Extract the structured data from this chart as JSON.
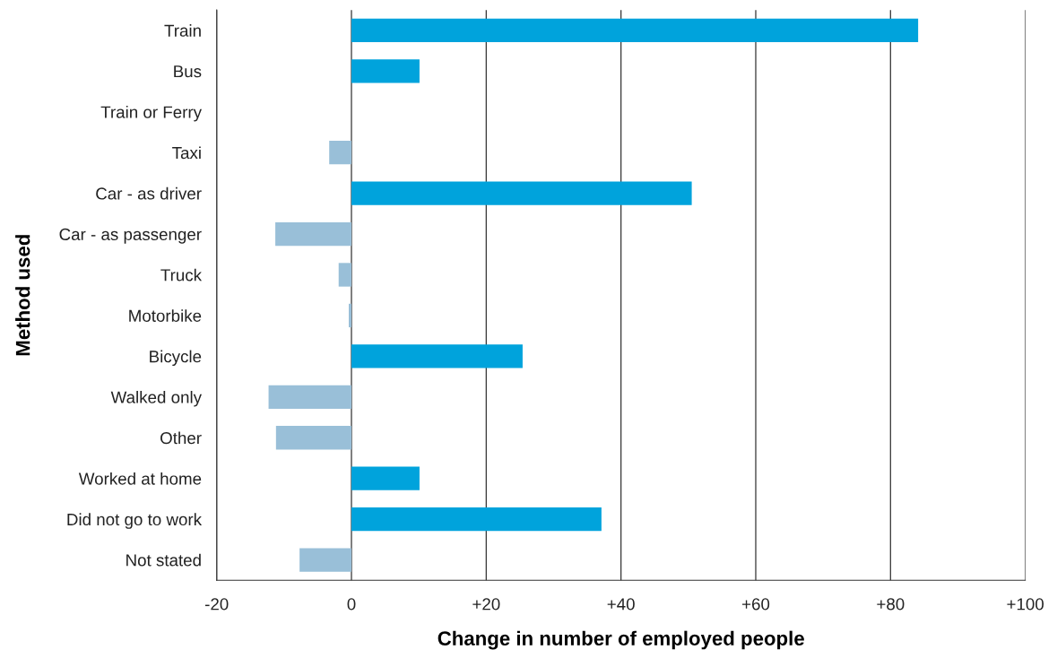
{
  "chart_data": {
    "type": "bar",
    "orientation": "horizontal",
    "xlabel": "Change in number of employed people",
    "ylabel": "Method used",
    "categories": [
      "Train",
      "Bus",
      "Train or Ferry",
      "Taxi",
      "Car - as driver",
      "Car - as passenger",
      "Truck",
      "Motorbike",
      "Bicycle",
      "Walked only",
      "Other",
      "Worked at home",
      "Did not go to work",
      "Not stated"
    ],
    "values": [
      84.1,
      10.1,
      0,
      -3.3,
      50.5,
      -11.3,
      -1.9,
      -0.4,
      25.4,
      -12.3,
      -11.2,
      10.1,
      37.1,
      -7.7
    ],
    "colors": [
      "#00a3dc",
      "#00a3dc",
      "#00a3dc",
      "#99bfd8",
      "#00a3dc",
      "#99bfd8",
      "#99bfd8",
      "#99bfd8",
      "#00a3dc",
      "#99bfd8",
      "#99bfd8",
      "#00a3dc",
      "#00a3dc",
      "#99bfd8"
    ],
    "xlim": [
      -20,
      100
    ],
    "xticks": [
      {
        "value": -20,
        "label": "-20"
      },
      0,
      {
        "value": 20,
        "label": "+20"
      },
      {
        "value": 40,
        "label": "+40"
      },
      {
        "value": 60,
        "label": "+60"
      },
      {
        "value": 80,
        "label": "+80"
      },
      {
        "value": 100,
        "label": "+100"
      }
    ],
    "grid": "x",
    "legend": false
  }
}
